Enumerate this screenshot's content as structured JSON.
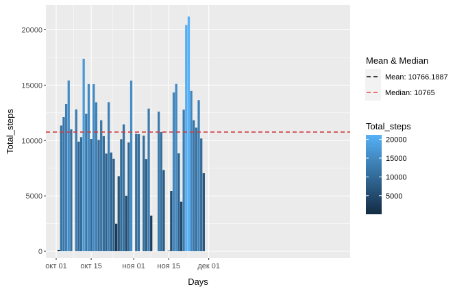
{
  "chart_data": {
    "type": "bar",
    "xlabel": "Days",
    "ylabel": "Total_steps",
    "x_ticks": [
      "окт 01",
      "окт 15",
      "ноя 01",
      "ноя 15",
      "дек 01"
    ],
    "y_ticks": [
      "0",
      "5000",
      "10000",
      "15000",
      "20000"
    ],
    "ylim": [
      0,
      21500
    ],
    "grid": true,
    "legend_position": "right",
    "x": [
      "2012-10-02",
      "2012-10-03",
      "2012-10-04",
      "2012-10-05",
      "2012-10-06",
      "2012-10-07",
      "2012-10-09",
      "2012-10-10",
      "2012-10-11",
      "2012-10-12",
      "2012-10-13",
      "2012-10-14",
      "2012-10-15",
      "2012-10-16",
      "2012-10-17",
      "2012-10-18",
      "2012-10-19",
      "2012-10-20",
      "2012-10-21",
      "2012-10-22",
      "2012-10-23",
      "2012-10-24",
      "2012-10-25",
      "2012-10-26",
      "2012-10-27",
      "2012-10-28",
      "2012-10-29",
      "2012-10-30",
      "2012-10-31",
      "2012-11-02",
      "2012-11-03",
      "2012-11-05",
      "2012-11-06",
      "2012-11-07",
      "2012-11-08",
      "2012-11-11",
      "2012-11-12",
      "2012-11-13",
      "2012-11-15",
      "2012-11-16",
      "2012-11-17",
      "2012-11-18",
      "2012-11-19",
      "2012-11-20",
      "2012-11-21",
      "2012-11-22",
      "2012-11-23",
      "2012-11-24",
      "2012-11-25",
      "2012-11-26",
      "2012-11-27",
      "2012-11-28",
      "2012-11-29"
    ],
    "values": [
      126,
      11352,
      12116,
      13294,
      15420,
      11015,
      12811,
      9900,
      10304,
      17382,
      12426,
      15098,
      10139,
      15084,
      13452,
      10056,
      11829,
      10395,
      8821,
      13460,
      8918,
      8355,
      2492,
      6778,
      10119,
      11458,
      5018,
      9819,
      15414,
      10600,
      10571,
      10439,
      8334,
      12883,
      3219,
      12608,
      10765,
      7336,
      41,
      5441,
      14339,
      15110,
      8841,
      4472,
      12787,
      20427,
      21194,
      14478,
      11834,
      11162,
      13646,
      10183,
      7047
    ],
    "mean_median_legend": {
      "title": "Mean & Median",
      "entries": [
        {
          "label": "Mean:  10766.1887",
          "value": 10766.1887,
          "color": "#000000"
        },
        {
          "label": "Median:  10765",
          "value": 10765,
          "color": "#e8474a"
        }
      ]
    },
    "color_legend": {
      "title": "Total_steps",
      "breaks": [
        5000,
        10000,
        15000,
        20000
      ],
      "labels": [
        "5000",
        "10000",
        "15000",
        "20000"
      ],
      "range": [
        41,
        21194
      ],
      "low_color": "#132b43",
      "high_color": "#56b1f7"
    }
  }
}
